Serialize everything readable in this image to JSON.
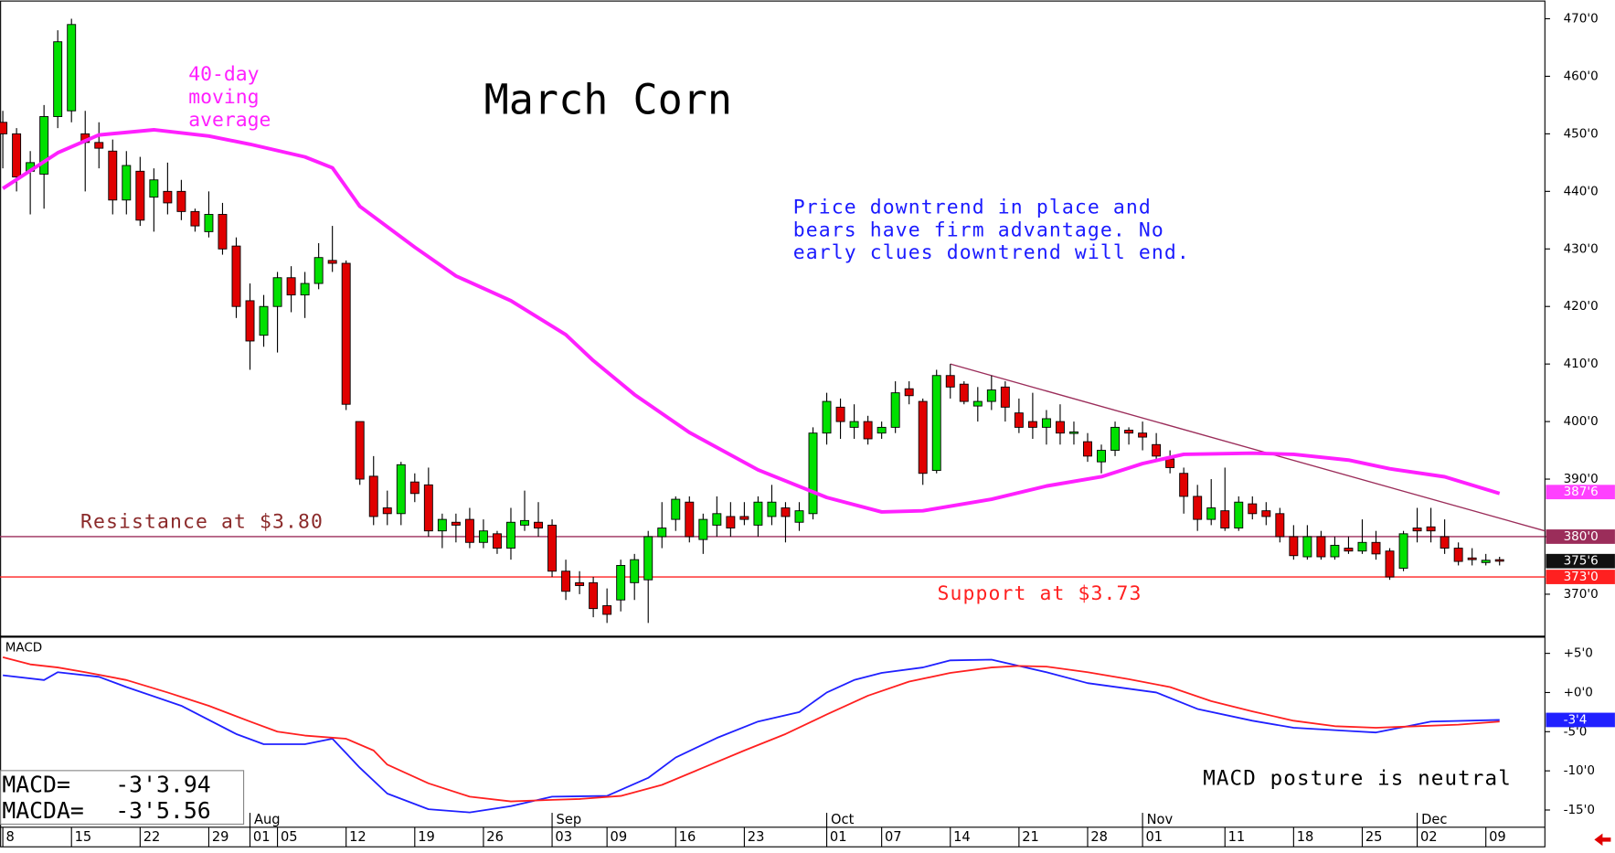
{
  "chart_data": [
    {
      "type": "candlestick",
      "title": "March Corn",
      "xlim": [
        -0.2,
        112.3
      ],
      "ylim": [
        362.8,
        472.9
      ],
      "yticks": [
        {
          "value": 370,
          "label": "370'0"
        },
        {
          "value": 380,
          "label": "380'0"
        },
        {
          "value": 390,
          "label": "390'0"
        },
        {
          "value": 400,
          "label": "400'0"
        },
        {
          "value": 410,
          "label": "410'0"
        },
        {
          "value": 420,
          "label": "420'0"
        },
        {
          "value": 430,
          "label": "430'0"
        },
        {
          "value": 440,
          "label": "440'0"
        },
        {
          "value": 450,
          "label": "450'0"
        },
        {
          "value": 460,
          "label": "460'0"
        },
        {
          "value": 470,
          "label": "470'0"
        }
      ],
      "up_color": "#00e000",
      "down_color": "#e00000",
      "open": [
        452,
        450,
        443.5,
        443,
        453,
        454,
        450,
        448.5,
        447,
        438.5,
        443.5,
        439,
        440,
        440,
        436.5,
        433,
        436,
        430.5,
        421,
        415,
        420,
        425,
        422,
        424,
        428,
        427.5,
        400,
        390.5,
        385,
        384,
        389.5,
        389,
        381,
        382.5,
        383,
        379,
        380.5,
        378,
        382,
        382.5,
        382,
        374,
        372,
        372,
        368,
        369,
        372,
        372.5,
        380,
        383,
        386,
        379.5,
        382,
        383.5,
        383.5,
        382,
        383.5,
        385,
        382.5,
        384,
        398,
        402.5,
        399,
        400,
        398,
        399,
        405.7,
        403.5,
        391.5,
        408,
        406.5,
        402.7,
        403.5,
        406,
        401.5,
        400,
        399,
        400,
        398,
        396.5,
        393,
        395,
        398.5,
        398,
        396,
        393.5,
        391,
        387,
        383,
        384.5,
        381.5,
        385.7,
        384.5,
        384,
        380,
        376.5,
        380,
        376.5,
        378,
        377.5,
        379,
        377.5,
        374.5,
        381.5,
        381.7,
        380,
        378,
        376.3,
        375.5,
        376
      ],
      "high": [
        454,
        451,
        447,
        455,
        468,
        470,
        454,
        452,
        449,
        447,
        446,
        444,
        445,
        442,
        437,
        440,
        438,
        432,
        424,
        422,
        426,
        427,
        426,
        431,
        434,
        428,
        400,
        394,
        388,
        393,
        391,
        392,
        384,
        384,
        385,
        383,
        381,
        385,
        388,
        386,
        383,
        376,
        374,
        373,
        371,
        376,
        377,
        381,
        386,
        387,
        387,
        384,
        387,
        386,
        386,
        387,
        389,
        386,
        386,
        399,
        405,
        404,
        403,
        401,
        400,
        407,
        407,
        404,
        409,
        410,
        407,
        406,
        408,
        407,
        404,
        405,
        402,
        403,
        400,
        398,
        396,
        400,
        399,
        400,
        398,
        395,
        392,
        389,
        390,
        392,
        387,
        387,
        386,
        385,
        382,
        382,
        381,
        380,
        380,
        383,
        381,
        378,
        381,
        385,
        385,
        383,
        379,
        378,
        377,
        376.5
      ],
      "low": [
        444,
        440,
        436,
        437,
        451,
        452,
        440,
        444,
        436,
        436,
        434,
        433,
        436,
        435,
        433,
        432,
        429,
        418,
        409,
        413,
        412,
        419,
        418,
        423,
        426,
        402,
        389,
        382,
        382,
        382,
        386,
        380,
        378,
        379,
        378,
        378,
        377,
        376,
        381,
        380,
        373,
        369,
        370,
        366,
        365,
        367,
        369,
        365,
        378,
        381,
        379,
        377,
        380,
        380,
        382,
        380,
        382,
        379,
        381,
        383,
        396,
        397,
        397,
        396,
        397,
        398,
        403,
        389,
        391,
        404,
        403,
        400,
        402,
        400,
        398,
        397,
        396,
        396,
        396,
        393,
        391,
        394,
        396,
        395,
        393,
        391,
        384,
        381,
        382,
        381,
        381,
        383,
        382,
        379,
        376,
        376,
        376,
        376,
        377,
        377,
        376,
        372.5,
        374,
        379,
        379,
        377,
        375,
        375,
        375,
        375
      ],
      "close": [
        450,
        442.5,
        445,
        453,
        466,
        469,
        448.5,
        447.5,
        438.5,
        444.5,
        435,
        442,
        438,
        436.5,
        434,
        436,
        430,
        420,
        414,
        420,
        425,
        422,
        424,
        428.5,
        427.5,
        403,
        390,
        383.5,
        384,
        392.5,
        387.5,
        381,
        383,
        382,
        379,
        381,
        378,
        382.5,
        382.8,
        381.5,
        374,
        370.5,
        371.5,
        367.5,
        366.5,
        375,
        376,
        380,
        381.5,
        386.5,
        380,
        383,
        384,
        381.5,
        383,
        386,
        386,
        383.5,
        384.5,
        398,
        403.5,
        400,
        400,
        397,
        399,
        405,
        404.5,
        391,
        408,
        406,
        403.5,
        403.5,
        405.5,
        402.5,
        399,
        399,
        400.5,
        398,
        398.2,
        394,
        395,
        399,
        398,
        397.3,
        394,
        392,
        387,
        383,
        385,
        381.5,
        386,
        384,
        383.5,
        380,
        376.7,
        380,
        376.5,
        378.5,
        377.5,
        379,
        377,
        373,
        380.5,
        381,
        381,
        378,
        375.7,
        376,
        375.9,
        375.75
      ],
      "moving_average": {
        "color": "#ff20ff",
        "label": [
          "40-day",
          "moving",
          "average"
        ],
        "x": [
          0,
          4,
          7,
          11,
          15,
          18,
          22,
          24,
          26,
          30,
          33,
          37,
          41,
          43,
          46,
          50,
          55,
          60,
          64,
          67,
          72,
          76,
          80,
          83,
          86,
          91,
          94,
          98,
          101,
          105,
          109
        ],
        "values": [
          440.5,
          446.7,
          449.8,
          450.7,
          449.6,
          448.2,
          446,
          444.1,
          437.4,
          430.3,
          425.3,
          421,
          415.1,
          410.6,
          404.7,
          398.1,
          391.6,
          386.8,
          384.3,
          384.5,
          386.5,
          388.8,
          390.4,
          392.7,
          394.3,
          394.5,
          394.3,
          393.3,
          391.8,
          390.4,
          387.5
        ]
      },
      "trendline": {
        "color": "#9b2d5a",
        "x": [
          69,
          112.3
        ],
        "values": [
          410,
          381
        ]
      },
      "levels": [
        {
          "value": 387.75,
          "label": "387'6",
          "color": "#ff40ff",
          "line": false
        },
        {
          "value": 380,
          "label": "380'0",
          "color": "#9b2d5a",
          "line": true
        },
        {
          "value": 375.75,
          "label": "375'6",
          "color": "#111111",
          "line": false
        },
        {
          "value": 373,
          "label": "373'0",
          "color": "#ff2020",
          "line": true
        }
      ],
      "note": [
        "Price downtrend in place and",
        "bears have firm advantage. No",
        "early clues downtrend will end."
      ],
      "resistance_label": "Resistance at $3.80",
      "support_label": "Support at $3.73"
    },
    {
      "type": "line",
      "title": "MACD",
      "xlim": [
        -0.2,
        112.3
      ],
      "ylim": [
        -17.2,
        7
      ],
      "yticks": [
        {
          "value": 5,
          "label": "+5'0"
        },
        {
          "value": 0,
          "label": "+0'0"
        },
        {
          "value": -5,
          "label": "-5'0"
        },
        {
          "value": -10,
          "label": "-10'0"
        },
        {
          "value": -15,
          "label": "-15'0"
        }
      ],
      "xticks": [
        {
          "value": 0,
          "label": "8"
        },
        {
          "value": 5,
          "label": "15"
        },
        {
          "value": 10,
          "label": "22"
        },
        {
          "value": 15,
          "label": "29"
        },
        {
          "value": 18,
          "label": "01"
        },
        {
          "value": 20,
          "label": "05"
        },
        {
          "value": 25,
          "label": "12"
        },
        {
          "value": 30,
          "label": "19"
        },
        {
          "value": 35,
          "label": "26"
        },
        {
          "value": 40,
          "label": "03"
        },
        {
          "value": 44,
          "label": "09"
        },
        {
          "value": 49,
          "label": "16"
        },
        {
          "value": 54,
          "label": "23"
        },
        {
          "value": 60,
          "label": "01"
        },
        {
          "value": 64,
          "label": "07"
        },
        {
          "value": 69,
          "label": "14"
        },
        {
          "value": 74,
          "label": "21"
        },
        {
          "value": 79,
          "label": "28"
        },
        {
          "value": 83,
          "label": "01"
        },
        {
          "value": 89,
          "label": "11"
        },
        {
          "value": 94,
          "label": "18"
        },
        {
          "value": 99,
          "label": "25"
        },
        {
          "value": 103,
          "label": "02"
        },
        {
          "value": 108,
          "label": "09"
        }
      ],
      "month_labels": [
        {
          "value": 18,
          "label": "Aug"
        },
        {
          "value": 40,
          "label": "Sep"
        },
        {
          "value": 60,
          "label": "Oct"
        },
        {
          "value": 83,
          "label": "Nov"
        },
        {
          "value": 103,
          "label": "Dec"
        }
      ],
      "series": [
        {
          "name": "MACD",
          "color": "#2020ff",
          "x": [
            0,
            3,
            4,
            7,
            9,
            13,
            17,
            19,
            22,
            24,
            26,
            28,
            31,
            34,
            37,
            40,
            44,
            47,
            49,
            52,
            55,
            58,
            60,
            62,
            64,
            67,
            69,
            72,
            76,
            79,
            84,
            87,
            91,
            94,
            98,
            100,
            104,
            109
          ],
          "values": [
            2.2,
            1.6,
            2.6,
            2,
            0.7,
            -1.7,
            -5.3,
            -6.6,
            -6.6,
            -5.9,
            -9.6,
            -12.9,
            -14.9,
            -15.3,
            -14.5,
            -13.3,
            -13.2,
            -10.9,
            -8.3,
            -5.8,
            -3.7,
            -2.5,
            0,
            1.6,
            2.5,
            3.2,
            4.1,
            4.2,
            2.6,
            1.2,
            0,
            -2.1,
            -3.6,
            -4.5,
            -4.9,
            -5.1,
            -3.7,
            -3.5
          ]
        },
        {
          "name": "MACDA",
          "color": "#ff2020",
          "x": [
            0,
            2,
            4,
            6,
            9,
            12,
            15,
            18,
            20,
            22,
            25,
            27,
            28,
            31,
            34,
            37,
            40,
            42,
            45,
            48,
            51,
            54,
            57,
            60,
            63,
            66,
            69,
            72,
            74,
            76,
            79,
            82,
            85,
            88,
            91,
            94,
            97,
            100,
            103,
            106,
            109
          ],
          "values": [
            4.5,
            3.6,
            3.2,
            2.6,
            1.6,
            0,
            -1.7,
            -3.7,
            -5,
            -5.5,
            -5.9,
            -7.4,
            -9.2,
            -11.6,
            -13.3,
            -13.9,
            -13.7,
            -13.6,
            -13.2,
            -11.8,
            -9.6,
            -7.4,
            -5.3,
            -2.8,
            -0.4,
            1.4,
            2.5,
            3.2,
            3.4,
            3.3,
            2.6,
            1.7,
            0.7,
            -1.1,
            -2.4,
            -3.6,
            -4.3,
            -4.5,
            -4.3,
            -4.1,
            -3.7
          ]
        }
      ],
      "levels": [
        {
          "value": -3.5,
          "label": "-3'4",
          "color": "#2020ff"
        }
      ],
      "readouts": [
        {
          "label": "MACD=",
          "text": "-3'3.94"
        },
        {
          "label": "MACDA=",
          "text": "-3'5.56"
        }
      ],
      "note": "MACD posture is neutral"
    }
  ]
}
